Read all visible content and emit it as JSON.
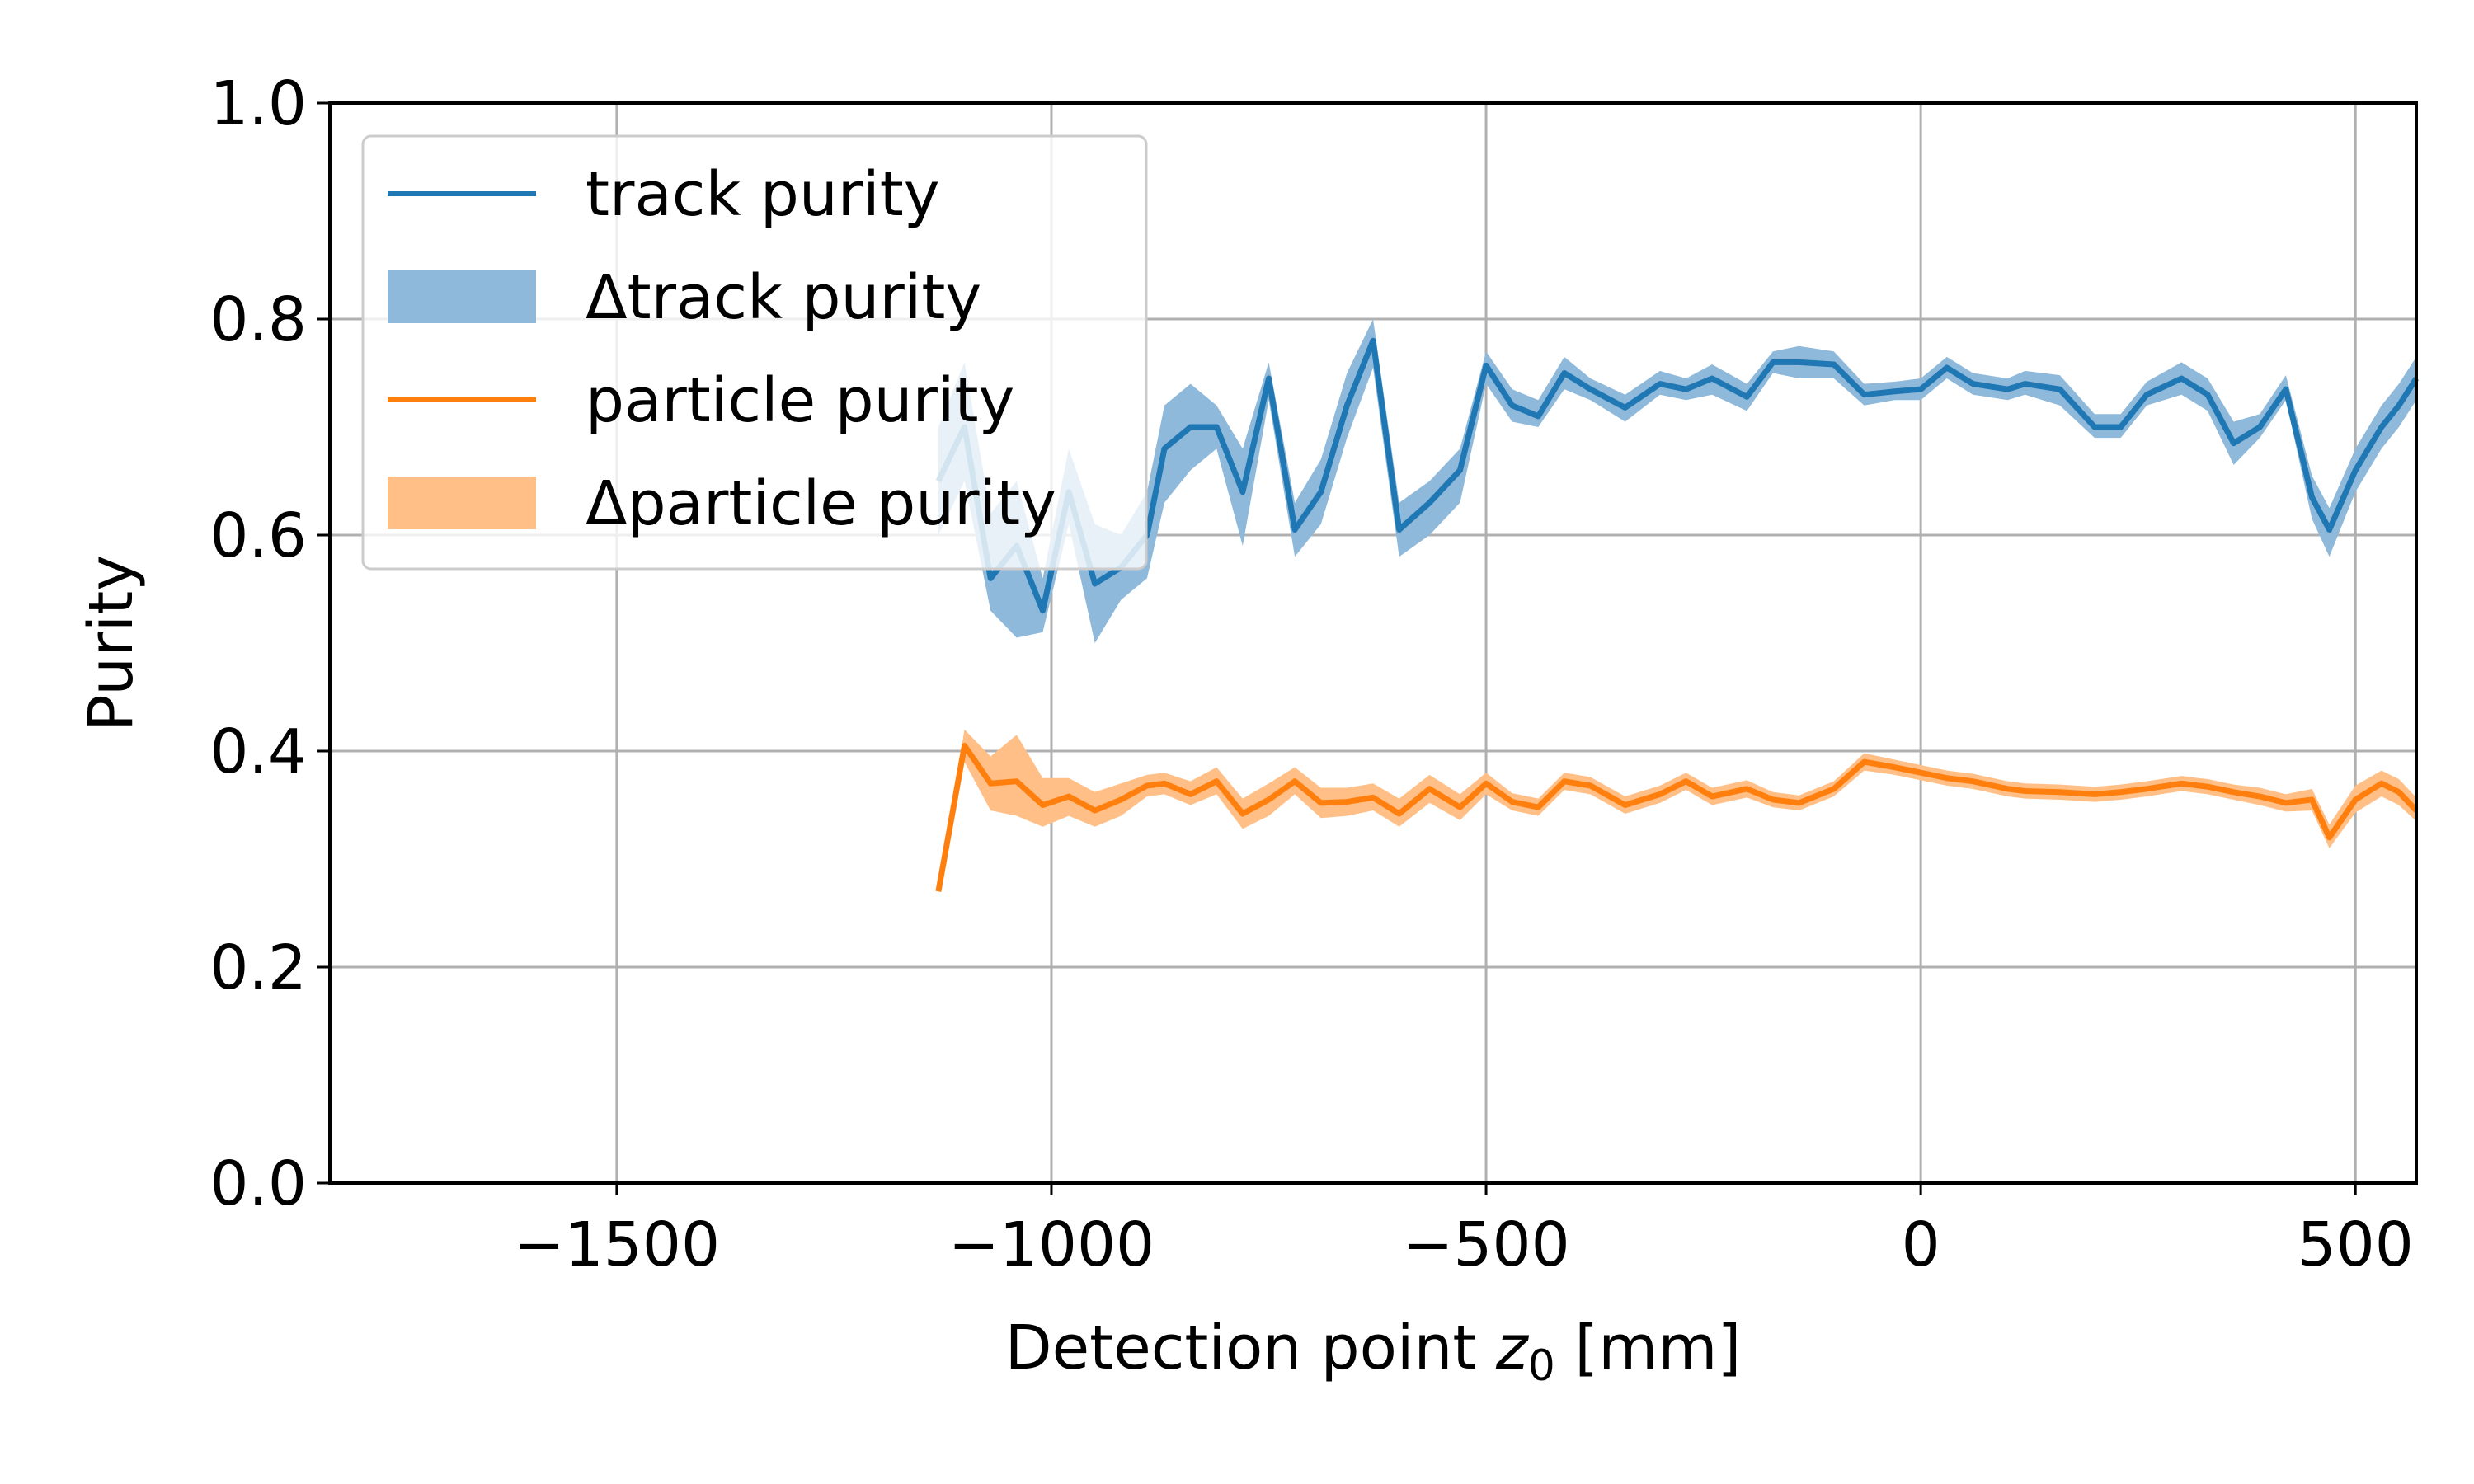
{
  "chart_data": {
    "type": "line",
    "xlabel_prefix": "Detection point ",
    "xlabel_var": "z",
    "xlabel_sub": "0",
    "xlabel_unit": " [mm]",
    "ylabel": "Purity",
    "xlim": [
      -1830,
      570
    ],
    "ylim": [
      0.0,
      1.0
    ],
    "x_ticks": [
      -1500,
      -1000,
      -500,
      0,
      500
    ],
    "x_tick_labels": [
      "−1500",
      "−1000",
      "−500",
      "0",
      "500"
    ],
    "y_ticks": [
      0.0,
      0.2,
      0.4,
      0.6,
      0.8,
      1.0
    ],
    "y_tick_labels": [
      "0.0",
      "0.2",
      "0.4",
      "0.6",
      "0.8",
      "1.0"
    ],
    "grid": true,
    "legend_position": "top-left",
    "legend": [
      "track purity",
      "Δtrack purity",
      "particle purity",
      "Δparticle purity"
    ],
    "colors": {
      "track": "#1f77b4",
      "track_band": "#8fb9da",
      "particle": "#ff7f0e",
      "particle_band": "#ffbf86",
      "grid": "#b0b0b0"
    },
    "x": [
      -1130,
      -1100,
      -1070,
      -1040,
      -1010,
      -980,
      -950,
      -920,
      -890,
      -870,
      -840,
      -810,
      -780,
      -750,
      -720,
      -690,
      -660,
      -630,
      -600,
      -565,
      -530,
      -500,
      -470,
      -440,
      -410,
      -380,
      -340,
      -300,
      -270,
      -240,
      -200,
      -170,
      -140,
      -100,
      -65,
      -30,
      0,
      30,
      60,
      100,
      120,
      160,
      200,
      230,
      260,
      300,
      330,
      360,
      390,
      420,
      450,
      470,
      500,
      530,
      550,
      570
    ],
    "series": [
      {
        "name": "track purity",
        "values": [
          0.65,
          0.7,
          0.56,
          0.59,
          0.53,
          0.64,
          0.555,
          0.57,
          0.6,
          0.68,
          0.7,
          0.7,
          0.64,
          0.745,
          0.605,
          0.64,
          0.72,
          0.78,
          0.605,
          0.63,
          0.66,
          0.757,
          0.72,
          0.71,
          0.75,
          0.735,
          0.718,
          0.74,
          0.735,
          0.745,
          0.728,
          0.76,
          0.76,
          0.758,
          0.73,
          0.733,
          0.735,
          0.755,
          0.74,
          0.735,
          0.74,
          0.735,
          0.7,
          0.7,
          0.73,
          0.745,
          0.73,
          0.685,
          0.7,
          0.735,
          0.635,
          0.605,
          0.66,
          0.7,
          0.72,
          0.745
        ],
        "lower": [
          0.6,
          0.65,
          0.53,
          0.505,
          0.51,
          0.61,
          0.5,
          0.54,
          0.56,
          0.63,
          0.66,
          0.68,
          0.59,
          0.725,
          0.58,
          0.61,
          0.69,
          0.755,
          0.58,
          0.6,
          0.63,
          0.74,
          0.705,
          0.7,
          0.735,
          0.725,
          0.705,
          0.73,
          0.725,
          0.73,
          0.715,
          0.75,
          0.745,
          0.745,
          0.72,
          0.725,
          0.725,
          0.745,
          0.73,
          0.725,
          0.73,
          0.72,
          0.69,
          0.69,
          0.72,
          0.73,
          0.715,
          0.665,
          0.69,
          0.725,
          0.615,
          0.58,
          0.64,
          0.68,
          0.7,
          0.725
        ],
        "upper": [
          0.7,
          0.76,
          0.62,
          0.65,
          0.56,
          0.68,
          0.61,
          0.6,
          0.64,
          0.72,
          0.74,
          0.72,
          0.68,
          0.76,
          0.63,
          0.67,
          0.75,
          0.8,
          0.63,
          0.65,
          0.68,
          0.77,
          0.735,
          0.725,
          0.765,
          0.745,
          0.73,
          0.752,
          0.745,
          0.758,
          0.74,
          0.77,
          0.775,
          0.77,
          0.74,
          0.742,
          0.745,
          0.765,
          0.75,
          0.745,
          0.752,
          0.748,
          0.712,
          0.712,
          0.742,
          0.76,
          0.745,
          0.705,
          0.712,
          0.748,
          0.655,
          0.625,
          0.68,
          0.72,
          0.74,
          0.765
        ]
      },
      {
        "name": "particle purity",
        "values": [
          0.27,
          0.405,
          0.37,
          0.372,
          0.35,
          0.358,
          0.345,
          0.355,
          0.368,
          0.37,
          0.36,
          0.372,
          0.342,
          0.355,
          0.372,
          0.352,
          0.353,
          0.357,
          0.342,
          0.365,
          0.348,
          0.37,
          0.353,
          0.348,
          0.372,
          0.368,
          0.35,
          0.36,
          0.372,
          0.358,
          0.365,
          0.355,
          0.352,
          0.365,
          0.39,
          0.385,
          0.38,
          0.375,
          0.372,
          0.365,
          0.363,
          0.362,
          0.36,
          0.362,
          0.365,
          0.37,
          0.367,
          0.362,
          0.358,
          0.352,
          0.355,
          0.32,
          0.355,
          0.37,
          0.362,
          0.345
        ],
        "lower": [
          0.268,
          0.39,
          0.345,
          0.34,
          0.33,
          0.34,
          0.33,
          0.34,
          0.358,
          0.36,
          0.35,
          0.36,
          0.328,
          0.34,
          0.36,
          0.338,
          0.34,
          0.345,
          0.33,
          0.352,
          0.336,
          0.36,
          0.345,
          0.34,
          0.364,
          0.36,
          0.342,
          0.352,
          0.364,
          0.35,
          0.357,
          0.348,
          0.345,
          0.358,
          0.382,
          0.378,
          0.373,
          0.368,
          0.365,
          0.358,
          0.356,
          0.355,
          0.353,
          0.355,
          0.358,
          0.363,
          0.36,
          0.355,
          0.35,
          0.344,
          0.345,
          0.31,
          0.343,
          0.358,
          0.35,
          0.335
        ],
        "upper": [
          0.272,
          0.42,
          0.395,
          0.415,
          0.375,
          0.375,
          0.362,
          0.37,
          0.378,
          0.38,
          0.372,
          0.385,
          0.356,
          0.37,
          0.385,
          0.366,
          0.366,
          0.37,
          0.356,
          0.378,
          0.36,
          0.38,
          0.361,
          0.356,
          0.38,
          0.376,
          0.358,
          0.368,
          0.38,
          0.366,
          0.373,
          0.362,
          0.359,
          0.372,
          0.398,
          0.392,
          0.387,
          0.382,
          0.379,
          0.372,
          0.37,
          0.369,
          0.367,
          0.369,
          0.372,
          0.377,
          0.374,
          0.369,
          0.366,
          0.36,
          0.365,
          0.332,
          0.368,
          0.382,
          0.374,
          0.357
        ]
      }
    ]
  }
}
